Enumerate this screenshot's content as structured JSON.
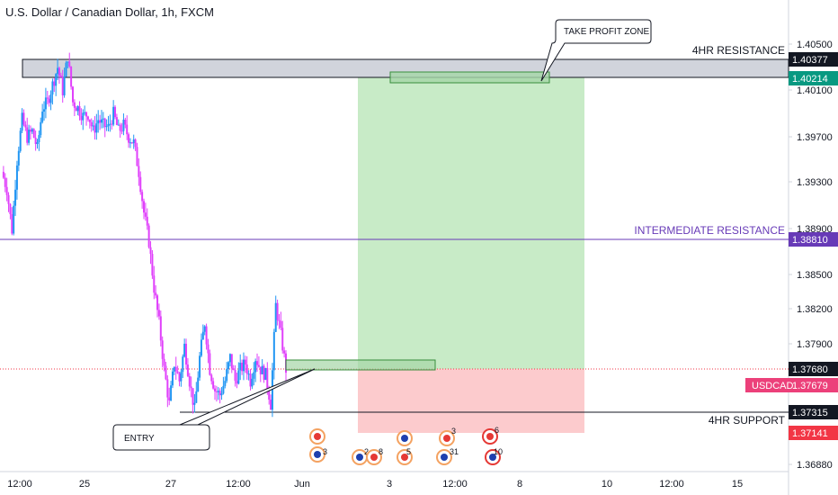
{
  "header": {
    "title": "U.S. Dollar / Canadian Dollar, 1h, FXCM"
  },
  "colors": {
    "up": "#2196f3",
    "down": "#e040fb",
    "resistance_zone": "#d1d4dc",
    "intermediate": "#673ab7",
    "profit": "#c8ebc7",
    "loss": "#fccbcd",
    "support": "#131722",
    "price_tag": "#ec407a",
    "tp_tag": "#089981",
    "stop_tag": "#f23645"
  },
  "chart_data": {
    "type": "candlestick",
    "symbol": "USDCAD",
    "interval": "1h",
    "ylim": [
      1.3688,
      1.405
    ],
    "y_ticks": [
      "1.40500",
      "1.40100",
      "1.39700",
      "1.39300",
      "1.38900",
      "1.38500",
      "1.38200",
      "1.37900",
      "1.36880"
    ],
    "x_ticks": [
      "12:00",
      "25",
      "27",
      "12:00",
      "Jun",
      "3",
      "12:00",
      "8",
      "10",
      "12:00",
      "15"
    ],
    "close_path": [
      [
        0,
        1.394
      ],
      [
        3,
        1.3925
      ],
      [
        6,
        1.389
      ],
      [
        9,
        1.395
      ],
      [
        12,
        1.3985
      ],
      [
        15,
        1.397
      ],
      [
        18,
        1.3975
      ],
      [
        21,
        1.396
      ],
      [
        24,
        1.3995
      ],
      [
        27,
        1.4
      ],
      [
        30,
        1.4015
      ],
      [
        33,
        1.403
      ],
      [
        36,
        1.401
      ],
      [
        39,
        1.404
      ],
      [
        42,
        1.4
      ],
      [
        45,
        1.3995
      ],
      [
        48,
        1.3988
      ],
      [
        51,
        1.399
      ],
      [
        54,
        1.3975
      ],
      [
        57,
        1.3985
      ],
      [
        60,
        1.398
      ],
      [
        63,
        1.3978
      ],
      [
        66,
        1.399
      ],
      [
        69,
        1.3975
      ],
      [
        72,
        1.398
      ],
      [
        75,
        1.397
      ],
      [
        78,
        1.3965
      ],
      [
        81,
        1.394
      ],
      [
        84,
        1.3905
      ],
      [
        87,
        1.388
      ],
      [
        90,
        1.384
      ],
      [
        93,
        1.381
      ],
      [
        96,
        1.377
      ],
      [
        99,
        1.374
      ],
      [
        102,
        1.3775
      ],
      [
        105,
        1.376
      ],
      [
        108,
        1.379
      ],
      [
        111,
        1.376
      ],
      [
        114,
        1.3735
      ],
      [
        117,
        1.378
      ],
      [
        120,
        1.381
      ],
      [
        123,
        1.377
      ],
      [
        126,
        1.3752
      ],
      [
        129,
        1.3748
      ],
      [
        132,
        1.376
      ],
      [
        135,
        1.378
      ],
      [
        138,
        1.376
      ],
      [
        141,
        1.377
      ],
      [
        144,
        1.3775
      ],
      [
        147,
        1.376
      ],
      [
        150,
        1.378
      ],
      [
        153,
        1.377
      ],
      [
        156,
        1.3765
      ],
      [
        159,
        1.374
      ],
      [
        162,
        1.3825
      ],
      [
        165,
        1.38
      ],
      [
        168,
        1.377
      ]
    ],
    "levels": [
      {
        "name": "4HR RESISTANCE",
        "price": 1.40377,
        "tag": "1.40377"
      },
      {
        "name": "INTERMEDIATE RESISTANCE",
        "price": 1.3881,
        "tag": "1.38810"
      },
      {
        "name": "4HR SUPPORT",
        "price": 1.37315,
        "tag": "1.37315"
      }
    ],
    "current_price": {
      "symbol": "USDCAD",
      "price": 1.37679,
      "tag": "1.37679"
    },
    "entry_price": {
      "price": 1.3768,
      "tag": "1.37680"
    },
    "take_profit": {
      "price": 1.40214,
      "tag": "1.40214"
    },
    "stop_loss": {
      "price": 1.37141,
      "tag": "1.37141"
    },
    "annotations": [
      {
        "text": "TAKE PROFIT ZONE"
      },
      {
        "text": "ENTRY"
      }
    ],
    "events": [
      {
        "count": "3"
      },
      {
        "count": "2"
      },
      {
        "count": "8"
      },
      {
        "count": "5"
      },
      {
        "count": "3"
      },
      {
        "count": "31"
      },
      {
        "count": "6"
      },
      {
        "count": "10"
      }
    ]
  }
}
